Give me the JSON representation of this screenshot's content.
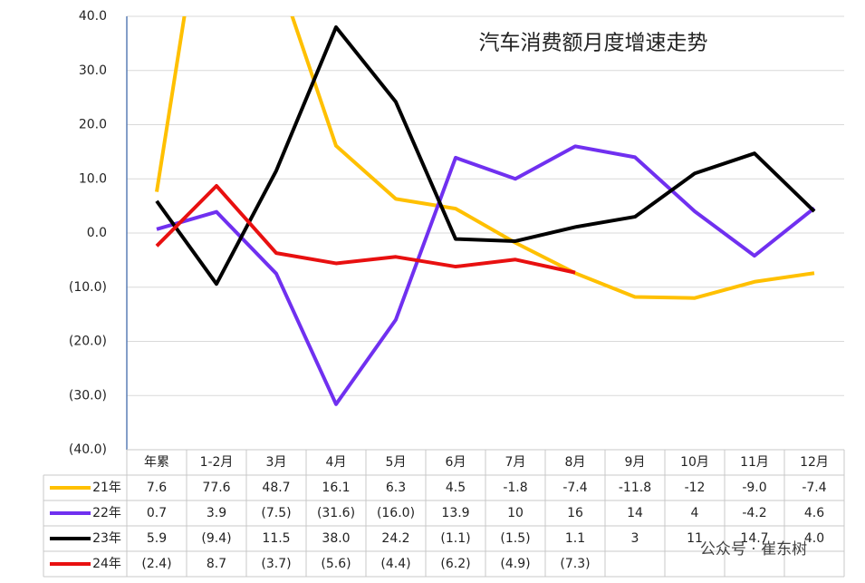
{
  "chart_data": {
    "type": "line",
    "title": "汽车消费额月度增速走势",
    "categories": [
      "年累",
      "1-2月",
      "3月",
      "4月",
      "5月",
      "6月",
      "7月",
      "8月",
      "9月",
      "10月",
      "11月",
      "12月"
    ],
    "ylim": [
      -40,
      40
    ],
    "yticks": [
      {
        "value": 40,
        "label": "40.0"
      },
      {
        "value": 30,
        "label": "30.0"
      },
      {
        "value": 20,
        "label": "20.0"
      },
      {
        "value": 10,
        "label": "10.0"
      },
      {
        "value": 0,
        "label": "0.0"
      },
      {
        "value": -10,
        "label": "(10.0)"
      },
      {
        "value": -20,
        "label": "(20.0)"
      },
      {
        "value": -30,
        "label": "(30.0)"
      },
      {
        "value": -40,
        "label": "(40.0)"
      }
    ],
    "grid": true,
    "series": [
      {
        "name": "21年",
        "color": "#FFC000",
        "values": [
          7.6,
          77.6,
          48.7,
          16.1,
          6.3,
          4.5,
          -1.8,
          -7.4,
          -11.8,
          -12,
          -9.0,
          -7.4
        ],
        "value_labels": [
          "7.6",
          "77.6",
          "48.7",
          "16.1",
          "6.3",
          "4.5",
          "-1.8",
          "-7.4",
          "-11.8",
          "-12",
          "-9.0",
          "-7.4"
        ]
      },
      {
        "name": "22年",
        "color": "#7030F0",
        "values": [
          0.7,
          3.9,
          -7.5,
          -31.6,
          -16.0,
          13.9,
          10,
          16,
          14,
          4,
          -4.2,
          4.6
        ],
        "value_labels": [
          "0.7",
          "3.9",
          "(7.5)",
          "(31.6)",
          "(16.0)",
          "13.9",
          "10",
          "16",
          "14",
          "4",
          "-4.2",
          "4.6"
        ]
      },
      {
        "name": "23年",
        "color": "#000000",
        "values": [
          5.9,
          -9.4,
          11.5,
          38.0,
          24.2,
          -1.1,
          -1.5,
          1.1,
          3,
          11,
          14.7,
          4.0
        ],
        "value_labels": [
          "5.9",
          "(9.4)",
          "11.5",
          "38.0",
          "24.2",
          "(1.1)",
          "(1.5)",
          "1.1",
          "3",
          "11",
          "14.7",
          "4.0"
        ]
      },
      {
        "name": "24年",
        "color": "#E81010",
        "values": [
          -2.4,
          8.7,
          -3.7,
          -5.6,
          -4.4,
          -6.2,
          -4.9,
          -7.3,
          null,
          null,
          null,
          null
        ],
        "value_labels": [
          "(2.4)",
          "8.7",
          "(3.7)",
          "(5.6)",
          "(4.4)",
          "(6.2)",
          "(4.9)",
          "(7.3)",
          null,
          null,
          null,
          null
        ]
      }
    ],
    "watermark": "公众号 · 崔东树"
  }
}
